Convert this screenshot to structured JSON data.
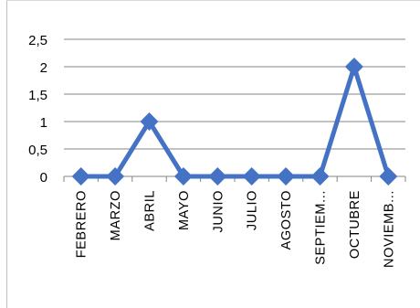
{
  "chart_data": {
    "type": "line",
    "categories": [
      "FEBRERO",
      "MARZO",
      "ABRIL",
      "MAYO",
      "JUNIO",
      "JULIO",
      "AGOSTO",
      "SEPTIEM...",
      "OCTUBRE",
      "NOVIEMB..."
    ],
    "series": [
      {
        "values": [
          0,
          0,
          1,
          0,
          0,
          0,
          0,
          0,
          2,
          0
        ]
      }
    ],
    "yticks": [
      "0",
      "0,5",
      "1",
      "1,5",
      "2",
      "2,5"
    ],
    "ylim": [
      0,
      2.5
    ],
    "title": "",
    "xlabel": "",
    "ylabel": "",
    "grid": true,
    "legend": "none",
    "line_color": "#4472c4",
    "grid_color": "#868686",
    "marker": "diamond"
  }
}
